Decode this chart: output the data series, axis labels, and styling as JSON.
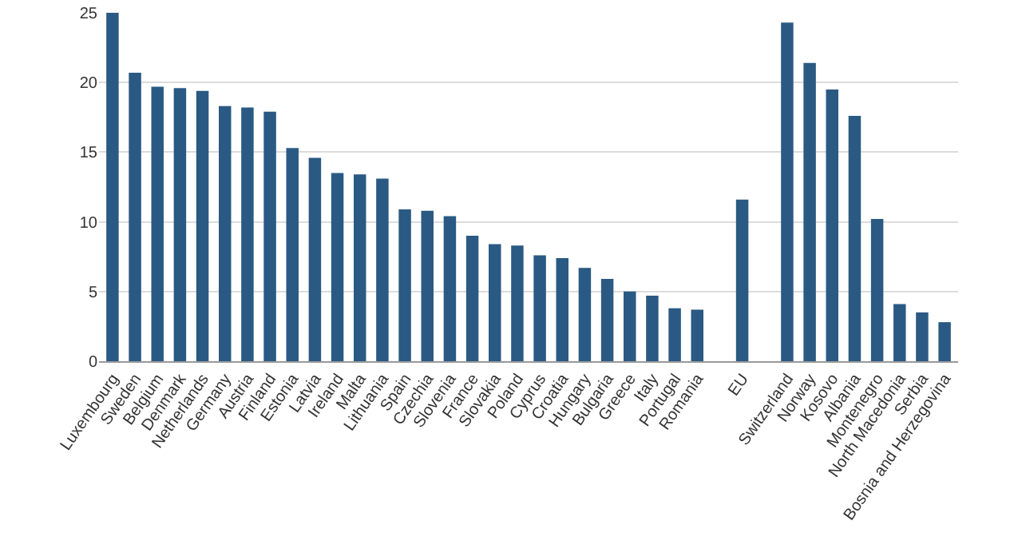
{
  "chart_data": {
    "type": "bar",
    "categories": [
      "Luxembourg",
      "Sweden",
      "Belgium",
      "Denmark",
      "Netherlands",
      "Germany",
      "Austria",
      "Finland",
      "Estonia",
      "Latvia",
      "Ireland",
      "Malta",
      "Lithuania",
      "Spain",
      "Czechia",
      "Slovenia",
      "France",
      "Slovakia",
      "Poland",
      "Cyprus",
      "Croatia",
      "Hungary",
      "Bulgaria",
      "Greece",
      "Italy",
      "Portugal",
      "Romania",
      null,
      "EU",
      null,
      "Switzerland",
      "Norway",
      "Kosovo",
      "Albania",
      "Montenegro",
      "North Macedonia",
      "Serbia",
      "Bosnia and Herzegovina"
    ],
    "values": [
      25,
      20.7,
      19.7,
      19.6,
      19.4,
      18.3,
      18.2,
      17.9,
      15.3,
      14.6,
      13.5,
      13.4,
      13.1,
      10.9,
      10.8,
      10.4,
      9.0,
      8.4,
      8.3,
      7.6,
      7.4,
      6.7,
      5.9,
      5.0,
      4.7,
      3.8,
      3.7,
      null,
      11.6,
      null,
      24.3,
      21.4,
      19.5,
      17.6,
      10.2,
      4.1,
      3.5,
      2.8
    ],
    "color": "#2a5a83",
    "ylim": [
      0,
      25
    ],
    "yticks": [
      0,
      5,
      10,
      15,
      20,
      25
    ],
    "grid": "y"
  }
}
